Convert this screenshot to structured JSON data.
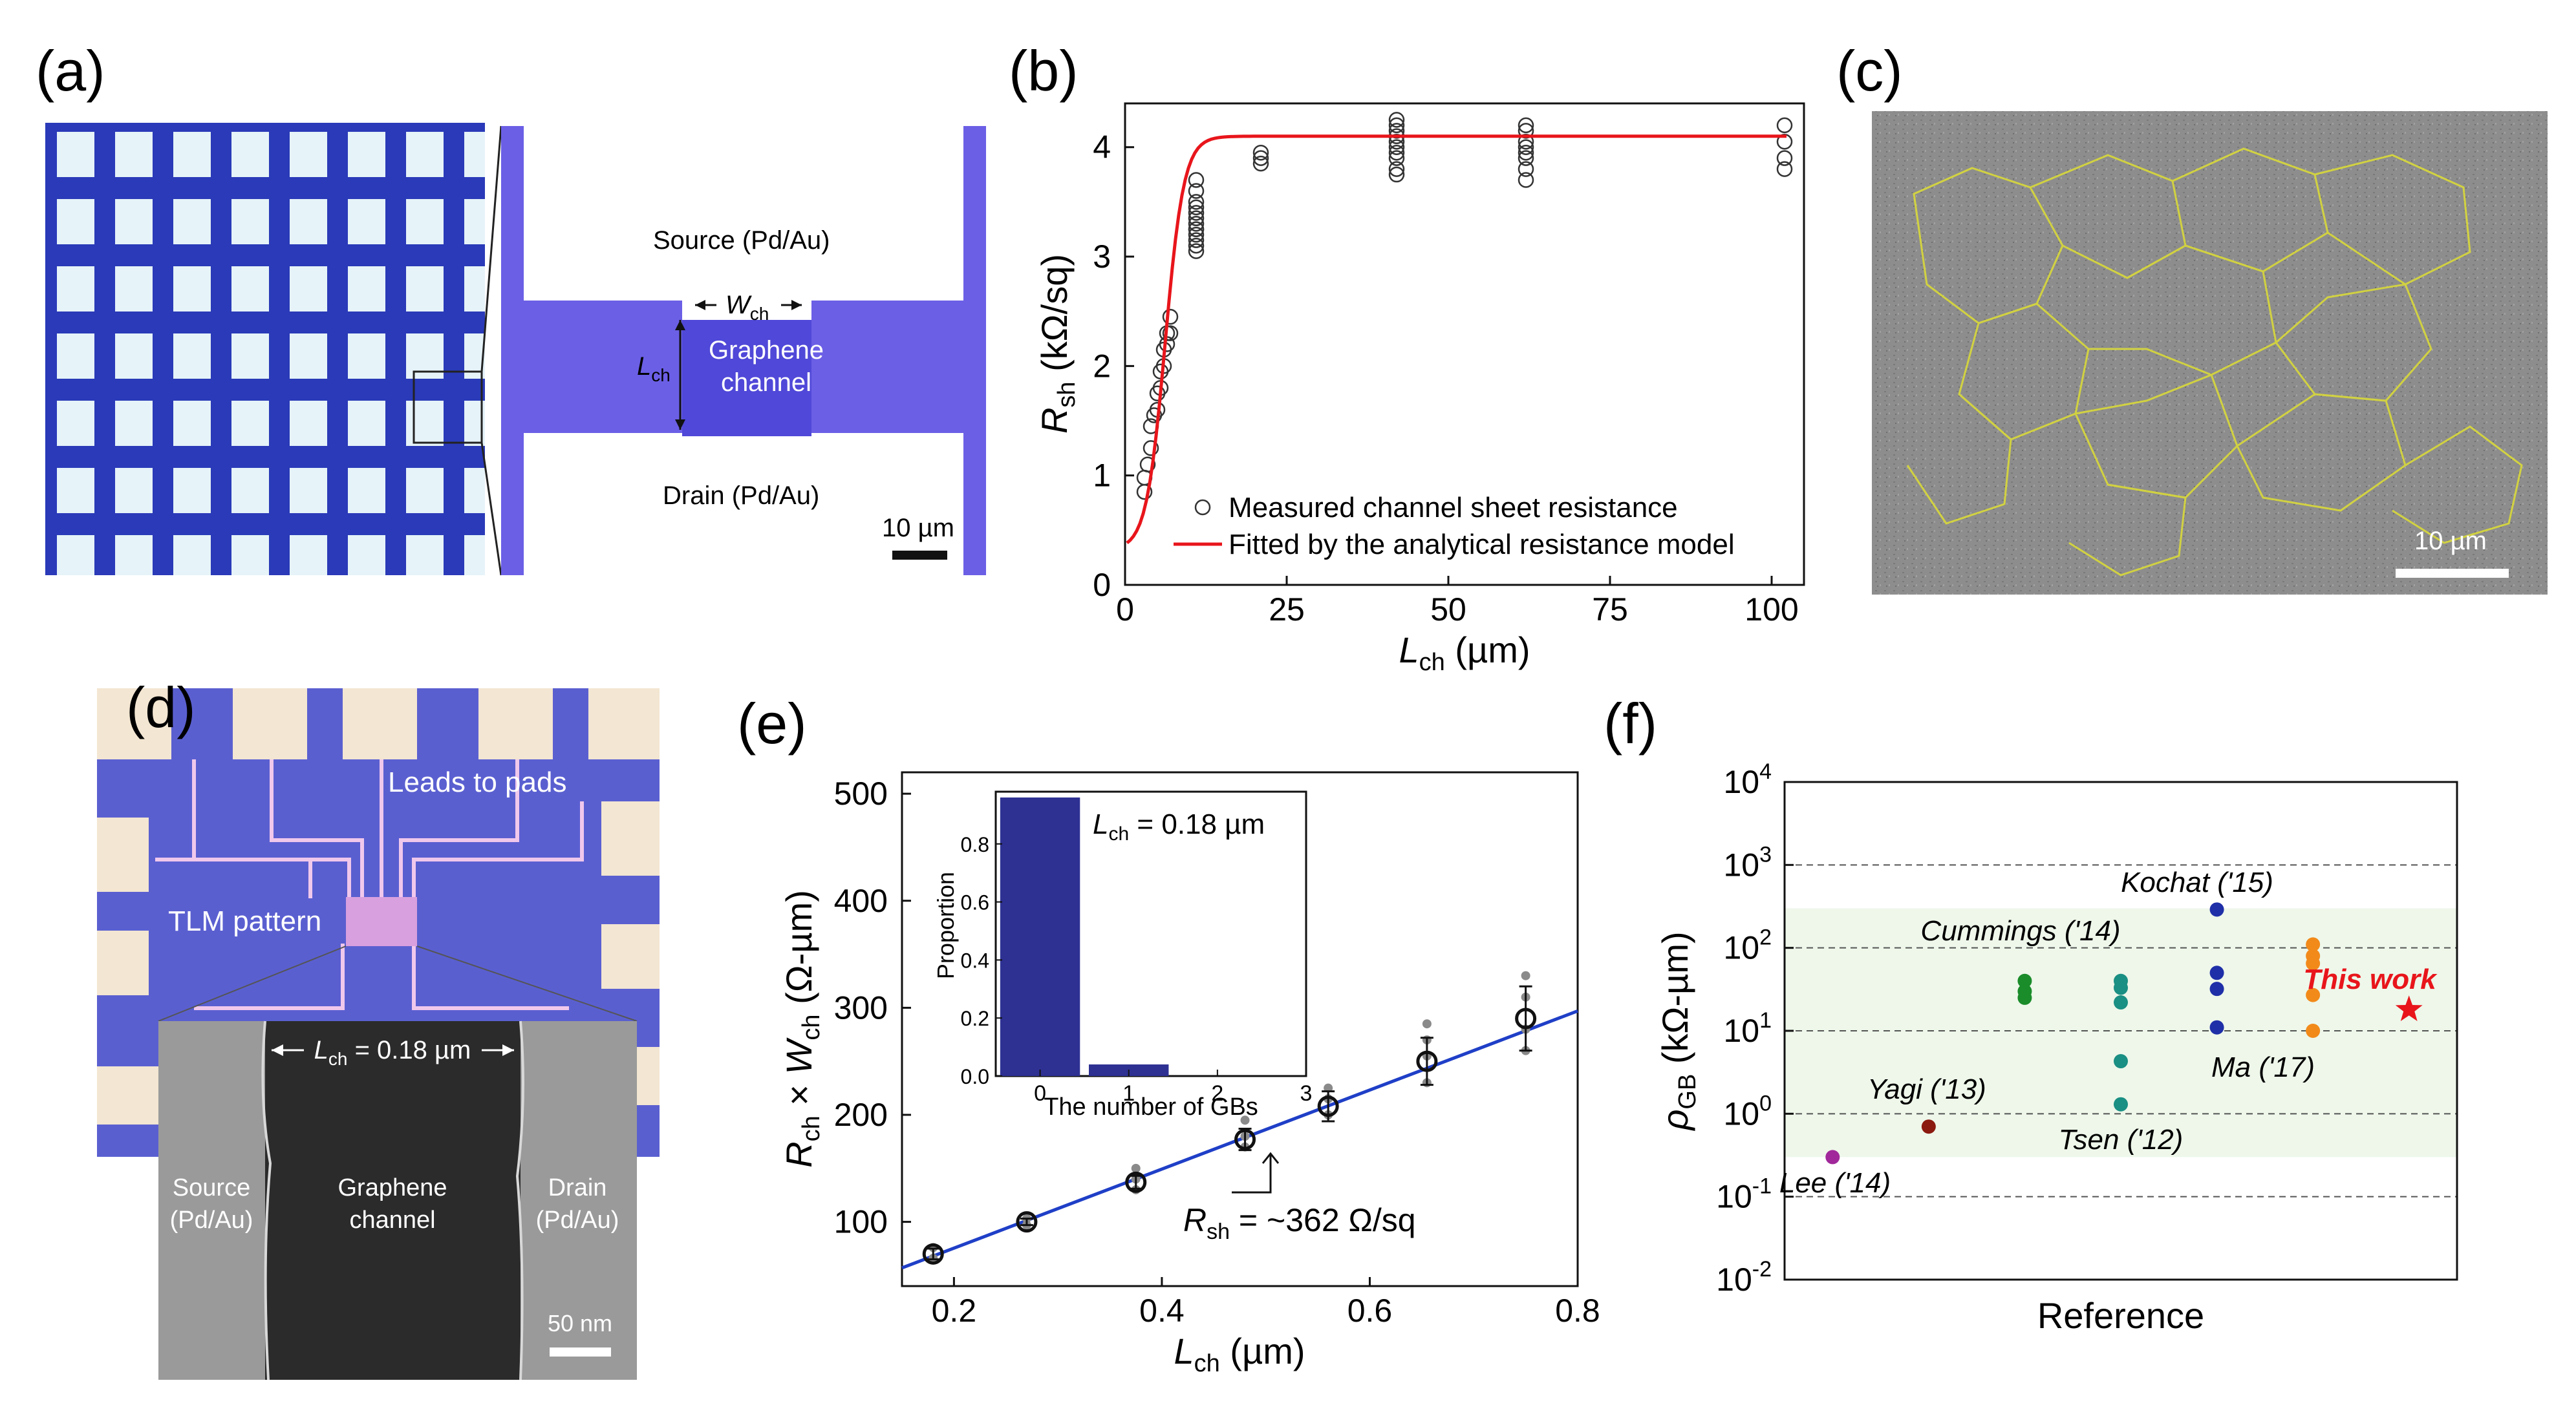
{
  "panels": {
    "a": {
      "label": "(a)",
      "source": "Source (Pd/Au)",
      "drain": "Drain (Pd/Au)",
      "wch": "W",
      "wch_sub": "ch",
      "lch": "L",
      "lch_sub": "ch",
      "channel_line1": "Graphene",
      "channel_line2": "channel",
      "scale": "10 µm"
    },
    "b": {
      "label": "(b)"
    },
    "c": {
      "label": "(c)",
      "scale": "10 µm"
    },
    "d": {
      "label": "(d)",
      "leads": "Leads to pads",
      "tlm": "TLM pattern",
      "lch_prefix": "L",
      "lch_sub": "ch",
      "lch_value": " = 0.18 µm",
      "source_line1": "Source",
      "source_line2": "(Pd/Au)",
      "channel_line1": "Graphene",
      "channel_line2": "channel",
      "drain_line1": "Drain",
      "drain_line2": "(Pd/Au)",
      "scale": "50 nm"
    },
    "e": {
      "label": "(e)",
      "inset_text": "L",
      "inset_sub": "ch",
      "inset_value": " = 0.18 µm",
      "rsh_annotation": "R",
      "rsh_sub": "sh",
      "rsh_value": " = ~362 Ω/sq"
    },
    "f": {
      "label": "(f)",
      "this_work": "This work"
    }
  },
  "chart_data": [
    {
      "panel": "b",
      "type": "scatter",
      "xlabel": "L",
      "xlabel_sub": "ch",
      "xlabel_unit": " (µm)",
      "ylabel": "R",
      "ylabel_sub": "sh",
      "ylabel_unit": " (kΩ/sq)",
      "xlim": [
        0,
        105
      ],
      "ylim": [
        0,
        4.4
      ],
      "xticks": [
        "0",
        "25",
        "50",
        "75",
        "100"
      ],
      "xtick_values": [
        0,
        25,
        50,
        75,
        100
      ],
      "yticks": [
        "0",
        "1",
        "2",
        "3",
        "4"
      ],
      "ytick_values": [
        0,
        1,
        2,
        3,
        4
      ],
      "legend": [
        "Measured channel sheet resistance",
        "Fitted by the analytical resistance model"
      ],
      "legend_position": "bottom-right",
      "series": [
        {
          "name": "Measured channel sheet resistance",
          "marker": "open-circle",
          "x": [
            3,
            3,
            3.5,
            4,
            4,
            4.5,
            5,
            5,
            5.5,
            5.5,
            6,
            6,
            6.5,
            6.5,
            7,
            7,
            11,
            11,
            11,
            11,
            11,
            11,
            11,
            11,
            11,
            11,
            11,
            11,
            11,
            21,
            21,
            21,
            42,
            42,
            42,
            42,
            42,
            42,
            42,
            42,
            42,
            42,
            62,
            62,
            62,
            62,
            62,
            62,
            62,
            62,
            102,
            102,
            102,
            102
          ],
          "y": [
            0.85,
            0.98,
            1.1,
            1.25,
            1.45,
            1.55,
            1.6,
            1.75,
            1.8,
            1.95,
            2.0,
            2.15,
            2.2,
            2.3,
            2.45,
            2.3,
            3.05,
            3.1,
            3.15,
            3.2,
            3.25,
            3.3,
            3.35,
            3.4,
            3.45,
            3.5,
            3.6,
            3.7,
            3.25,
            3.85,
            3.9,
            3.95,
            3.75,
            3.8,
            3.9,
            3.95,
            4.0,
            4.05,
            4.1,
            4.15,
            4.2,
            4.25,
            3.7,
            3.8,
            3.9,
            3.95,
            4.0,
            4.05,
            4.15,
            4.2,
            3.8,
            3.9,
            4.05,
            4.2
          ]
        },
        {
          "name": "Fitted by the analytical resistance model",
          "type": "line",
          "color": "#e8151b",
          "model": "sigmoid",
          "params": {
            "base": 0.32,
            "max": 4.1,
            "center": 6.2,
            "width": 1.45
          }
        }
      ]
    },
    {
      "panel": "e",
      "type": "scatter",
      "xlabel": "L",
      "xlabel_sub": "ch",
      "xlabel_unit": " (µm)",
      "ylabel_parts": [
        "R",
        "ch",
        " × ",
        "W",
        "ch",
        " (Ω-µm)"
      ],
      "xlim": [
        0.15,
        0.8
      ],
      "ylim": [
        40,
        520
      ],
      "xticks": [
        "0.2",
        "0.4",
        "0.6",
        "0.8"
      ],
      "xtick_values": [
        0.2,
        0.4,
        0.6,
        0.8
      ],
      "yticks": [
        "100",
        "200",
        "300",
        "400",
        "500"
      ],
      "ytick_values": [
        100,
        200,
        300,
        400,
        500
      ],
      "mean_points": {
        "x": [
          0.18,
          0.27,
          0.375,
          0.48,
          0.56,
          0.655,
          0.75
        ],
        "y": [
          70,
          100,
          137,
          177,
          208,
          250,
          290
        ],
        "err": [
          5,
          3,
          6,
          10,
          14,
          22,
          30
        ]
      },
      "raw_points": {
        "x": [
          0.18,
          0.18,
          0.27,
          0.27,
          0.375,
          0.375,
          0.375,
          0.48,
          0.48,
          0.48,
          0.56,
          0.56,
          0.56,
          0.655,
          0.655,
          0.655,
          0.655,
          0.75,
          0.75,
          0.75,
          0.75
        ],
        "y": [
          66,
          76,
          97,
          103,
          130,
          140,
          150,
          170,
          180,
          195,
          200,
          215,
          225,
          230,
          255,
          270,
          285,
          260,
          280,
          310,
          330
        ]
      },
      "fit_line": {
        "x": [
          0.15,
          0.8
        ],
        "y": [
          57,
          297
        ],
        "color": "#1f3fc7"
      },
      "inset": {
        "type": "bar",
        "xlabel": "The number of GBs",
        "ylabel": "Proportion",
        "categories": [
          "0",
          "1",
          "2",
          "3"
        ],
        "values": [
          0.96,
          0.04,
          0,
          0
        ],
        "ylim": [
          0,
          0.98
        ],
        "yticks": [
          "0.0",
          "0.2",
          "0.4",
          "0.6",
          "0.8"
        ],
        "ytick_values": [
          0,
          0.2,
          0.4,
          0.6,
          0.8
        ],
        "color": "#2e3192"
      }
    },
    {
      "panel": "f",
      "type": "scatter",
      "yscale": "log",
      "xlabel": "Reference",
      "ylabel": "ρ",
      "ylabel_sub": "GB",
      "ylabel_unit": " (kΩ-µm)",
      "ylim_exp": [
        -2,
        4
      ],
      "yticks_base": "10",
      "ytick_exps": [
        "-2",
        "-1",
        "0",
        "1",
        "2",
        "3",
        "4"
      ],
      "band": [
        0.3,
        300
      ],
      "groups": [
        {
          "name": "Lee ('14)",
          "color": "#a0289a",
          "values": [
            0.3
          ]
        },
        {
          "name": "Yagi ('13)",
          "color": "#8b1a10",
          "values": [
            0.7
          ]
        },
        {
          "name": "Cummings ('14)",
          "color": "#1a8c2a",
          "values": [
            25,
            30,
            40
          ]
        },
        {
          "name": "Tsen ('12)",
          "color": "#1a8f83",
          "values": [
            1.3,
            4.3,
            22,
            33,
            40
          ]
        },
        {
          "name": "Kochat ('15)",
          "color": "#1f2fa8",
          "values": [
            11,
            32,
            50,
            290
          ]
        },
        {
          "name": "Ma ('17)",
          "color": "#f28a1a",
          "values": [
            10,
            27,
            65,
            80,
            110
          ]
        }
      ],
      "this_work": {
        "value": 18,
        "color": "#e8151b"
      }
    }
  ]
}
